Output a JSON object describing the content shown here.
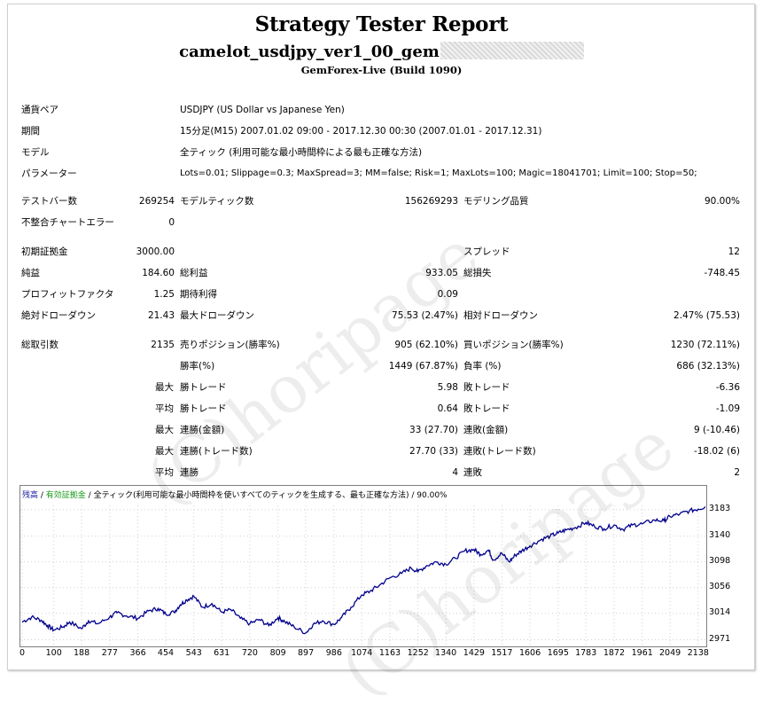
{
  "header": {
    "title": "Strategy Tester Report",
    "ea_name": "camelot_usdjpy_ver1_00_gem",
    "ea_masked": "********_***",
    "build": "GemForex-Live (Build 1090)"
  },
  "info": [
    {
      "label": "通貨ペア",
      "value": "USDJPY (US Dollar vs Japanese Yen)"
    },
    {
      "label": "期間",
      "value": "15分足(M15) 2007.01.02 09:00 - 2017.12.30 00:30 (2007.01.01 - 2017.12.31)"
    },
    {
      "label": "モデル",
      "value": "全ティック (利用可能な最小時間枠による最も正確な方法)"
    },
    {
      "label": "パラメーター",
      "value": "Lots=0.01; Slippage=0.3; MaxSpread=3; MM=false; Risk=1; MaxLots=100; Magic=18041701; Limit=100; Stop=50;"
    }
  ],
  "stats": {
    "test_bars_label": "テストバー数",
    "test_bars": "269254",
    "model_ticks_label": "モデルティック数",
    "model_ticks": "156269293",
    "modeling_quality_label": "モデリング品質",
    "modeling_quality": "90.00%",
    "mismatch_label": "不整合チャートエラー",
    "mismatch": "0",
    "initial_deposit_label": "初期証拠金",
    "initial_deposit": "3000.00",
    "spread_label": "スプレッド",
    "spread": "12",
    "net_profit_label": "純益",
    "net_profit": "184.60",
    "gross_profit_label": "総利益",
    "gross_profit": "933.05",
    "gross_loss_label": "総損失",
    "gross_loss": "-748.45",
    "profit_factor_label": "プロフィットファクタ",
    "profit_factor": "1.25",
    "expected_payoff_label": "期待利得",
    "expected_payoff": "0.09",
    "abs_dd_label": "絶対ドローダウン",
    "abs_dd": "21.43",
    "max_dd_label": "最大ドローダウン",
    "max_dd": "75.53 (2.47%)",
    "rel_dd_label": "相対ドローダウン",
    "rel_dd": "2.47% (75.53)",
    "total_trades_label": "総取引数",
    "total_trades": "2135",
    "short_label": "売りポジション(勝率%)",
    "short": "905 (62.10%)",
    "long_label": "買いポジション(勝率%)",
    "long": "1230 (72.11%)",
    "win_rate_label": "勝率(%)",
    "win_rate": "1449 (67.87%)",
    "loss_rate_label": "負率 (%)",
    "loss_rate": "686 (32.13%)",
    "max_label": "最大",
    "avg_label": "平均",
    "largest_win_label": "勝トレード",
    "largest_win": "5.98",
    "largest_loss_label": "敗トレード",
    "largest_loss": "-6.36",
    "avg_win_label": "勝トレード",
    "avg_win": "0.64",
    "avg_loss_label": "敗トレード",
    "avg_loss": "-1.09",
    "max_consec_wins_label": "連勝(金額)",
    "max_consec_wins": "33 (27.70)",
    "max_consec_losses_label": "連敗(金額)",
    "max_consec_losses": "9 (-10.46)",
    "max_consec_profit_label": "連勝(トレード数)",
    "max_consec_profit": "27.70 (33)",
    "max_consec_loss_label": "連敗(トレード数)",
    "max_consec_loss": "-18.02 (6)",
    "avg_consec_wins_label": "連勝",
    "avg_consec_wins": "4",
    "avg_consec_losses_label": "連敗",
    "avg_consec_losses": "2"
  },
  "watermark": "(C)horipage",
  "chart_legend": {
    "balance": "残高",
    "sep1": " / ",
    "equity": "有効証拠金",
    "sep2": " / ",
    "model": "全ティック(利用可能な最小時間枠を使いすべてのティックを生成する、最も正確な方法)",
    "quality": " / 90.00%"
  },
  "chart_data": {
    "type": "line",
    "x_ticks": [
      "0",
      "100",
      "188",
      "277",
      "366",
      "454",
      "543",
      "631",
      "720",
      "809",
      "897",
      "986",
      "1074",
      "1163",
      "1252",
      "1340",
      "1429",
      "1517",
      "1606",
      "1695",
      "1783",
      "1872",
      "1961",
      "2049",
      "2138"
    ],
    "y_ticks": [
      "3183",
      "3140",
      "3098",
      "3056",
      "3014",
      "2971"
    ],
    "xlim": [
      0,
      2158
    ],
    "ylim": [
      2966,
      3190
    ],
    "color": "#00008b",
    "series": [
      {
        "x": [
          0,
          30,
          60,
          80,
          100,
          130,
          150,
          188,
          210,
          240,
          277,
          300,
          330,
          366,
          400,
          430,
          454,
          480,
          500,
          520,
          543,
          570,
          600,
          631,
          660,
          690,
          720,
          750,
          780,
          809,
          830,
          860,
          897,
          920,
          950,
          986,
          1010,
          1040,
          1074,
          1100,
          1130,
          1163,
          1200,
          1230,
          1252,
          1280,
          1310,
          1340,
          1370,
          1400,
          1429,
          1450,
          1475,
          1490,
          1517,
          1540,
          1560,
          1580,
          1606,
          1640,
          1670,
          1695,
          1720,
          1750,
          1783,
          1810,
          1840,
          1872,
          1900,
          1930,
          1961,
          2000,
          2030,
          2049,
          2080,
          2110,
          2138,
          2160
        ],
        "y": [
          3000,
          3008,
          3003,
          2994,
          2987,
          2992,
          3000,
          2989,
          3002,
          2997,
          3008,
          3015,
          3010,
          3006,
          3018,
          3022,
          3013,
          3016,
          3028,
          3036,
          3042,
          3024,
          3030,
          3016,
          3020,
          3006,
          2997,
          3004,
          2994,
          3007,
          3001,
          2992,
          2982,
          2996,
          3002,
          2996,
          3007,
          3024,
          3044,
          3050,
          3060,
          3072,
          3079,
          3088,
          3082,
          3092,
          3098,
          3094,
          3104,
          3116,
          3118,
          3110,
          3117,
          3101,
          3112,
          3098,
          3109,
          3116,
          3124,
          3134,
          3140,
          3145,
          3150,
          3154,
          3162,
          3156,
          3152,
          3158,
          3151,
          3158,
          3160,
          3166,
          3165,
          3172,
          3176,
          3181,
          3184,
          3188
        ]
      }
    ]
  }
}
